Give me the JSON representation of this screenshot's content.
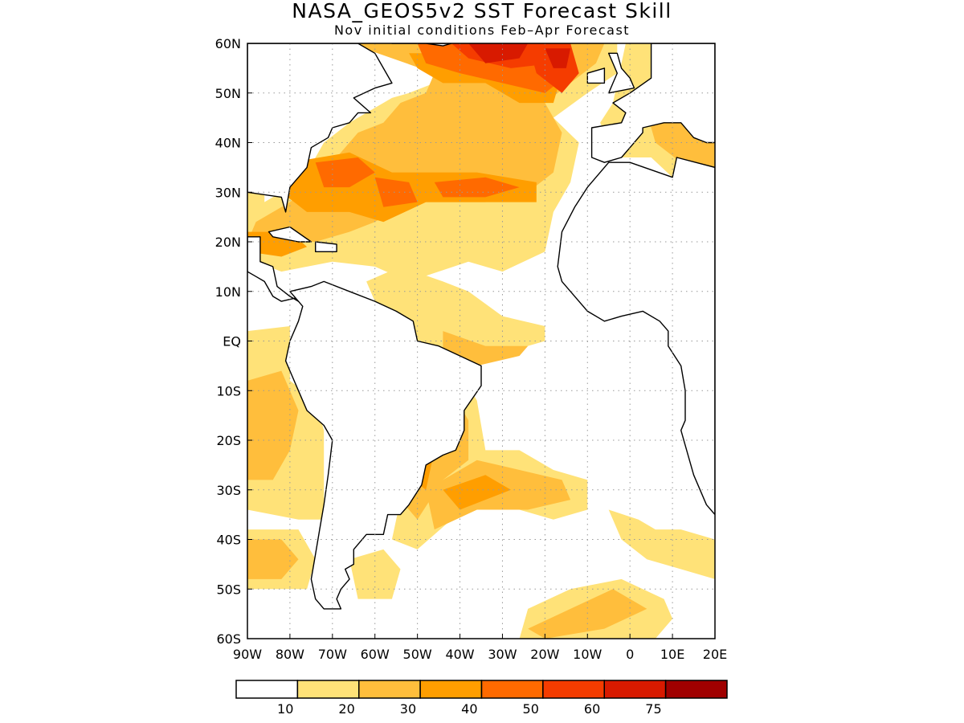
{
  "title": "NASA_GEOS5v2 SST Forecast Skill",
  "subtitle": "Nov initial conditions  Feb–Apr Forecast",
  "map": {
    "region": "Atlantic Ocean",
    "lon_range": [
      -90,
      20
    ],
    "lat_range": [
      -60,
      60
    ],
    "lat_ticks": [
      {
        "value": 60,
        "label": "60N"
      },
      {
        "value": 50,
        "label": "50N"
      },
      {
        "value": 40,
        "label": "40N"
      },
      {
        "value": 30,
        "label": "30N"
      },
      {
        "value": 20,
        "label": "20N"
      },
      {
        "value": 10,
        "label": "10N"
      },
      {
        "value": 0,
        "label": "EQ"
      },
      {
        "value": -10,
        "label": "10S"
      },
      {
        "value": -20,
        "label": "20S"
      },
      {
        "value": -30,
        "label": "30S"
      },
      {
        "value": -40,
        "label": "40S"
      },
      {
        "value": -50,
        "label": "50S"
      },
      {
        "value": -60,
        "label": "60S"
      }
    ],
    "lon_ticks": [
      {
        "value": -90,
        "label": "90W"
      },
      {
        "value": -80,
        "label": "80W"
      },
      {
        "value": -70,
        "label": "70W"
      },
      {
        "value": -60,
        "label": "60W"
      },
      {
        "value": -50,
        "label": "50W"
      },
      {
        "value": -40,
        "label": "40W"
      },
      {
        "value": -30,
        "label": "30W"
      },
      {
        "value": -20,
        "label": "20W"
      },
      {
        "value": -10,
        "label": "10W"
      },
      {
        "value": 0,
        "label": "0"
      },
      {
        "value": 10,
        "label": "10E"
      },
      {
        "value": 20,
        "label": "20E"
      }
    ],
    "grid": "dotted"
  },
  "colorbar": {
    "bins": [
      {
        "color": "#ffffff",
        "label": "10"
      },
      {
        "color": "#ffe278",
        "label": "20"
      },
      {
        "color": "#ffbe3c",
        "label": "30"
      },
      {
        "color": "#ff9e00",
        "label": "40"
      },
      {
        "color": "#ff6a00",
        "label": "50"
      },
      {
        "color": "#f53c00",
        "label": "60"
      },
      {
        "color": "#d81a00",
        "label": "75"
      },
      {
        "color": "#a00000",
        "label": ""
      }
    ]
  }
}
